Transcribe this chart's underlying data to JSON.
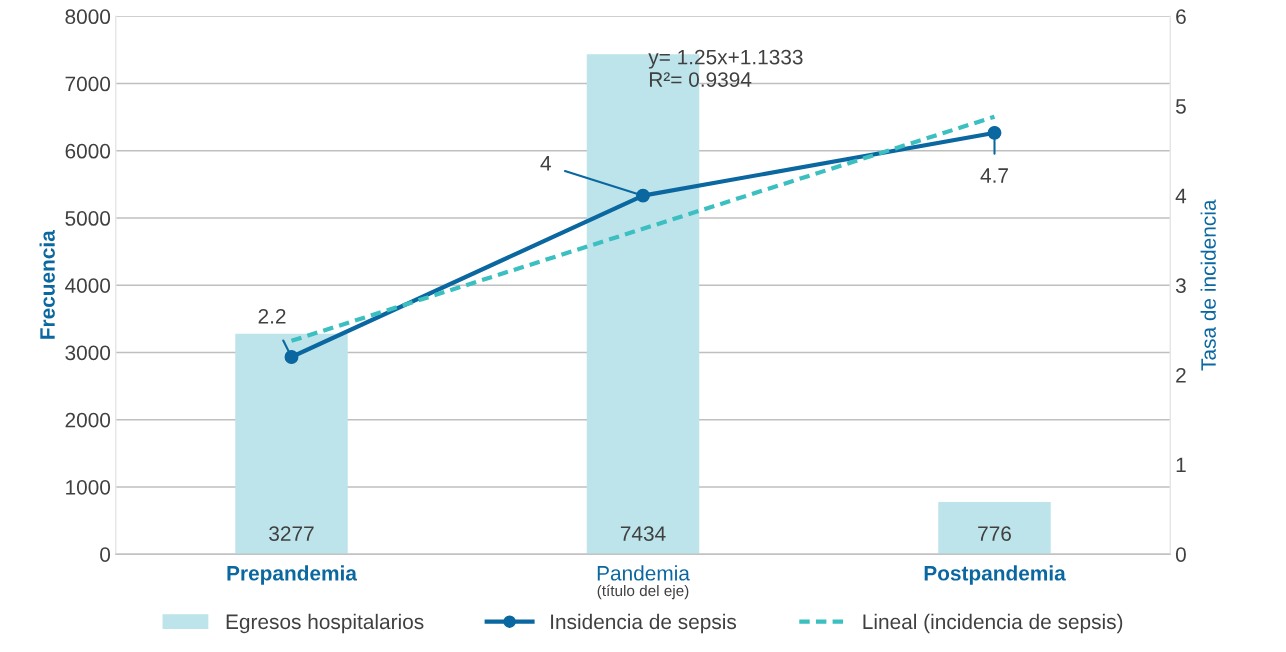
{
  "chart_data": {
    "type": "bar",
    "xlabel": "(título del eje)",
    "ylabel": "Frecuencia",
    "y2label": "Tasa de incidencia",
    "categories": [
      "Prepandemia",
      "Pandemia",
      "Postpandemia"
    ],
    "series": [
      {
        "name": "Egresos hospitalarios",
        "color": "#bde4ea",
        "values": [
          3277,
          7434,
          776
        ],
        "value_labels": [
          "3277",
          "7434",
          "776"
        ]
      },
      {
        "name": "Insidencia de sepsis",
        "type": "line",
        "axis": "y2",
        "color": "#0b67a0",
        "marker": "circle",
        "line_style": "solid",
        "values": [
          2.2,
          4,
          4.7
        ],
        "value_labels": [
          "2.2",
          "4",
          "4.7"
        ]
      },
      {
        "name": "Lineal (incidencia de sepsis)",
        "type": "line",
        "axis": "y2",
        "color": "#3bbfc0",
        "marker": "none",
        "line_style": "dashed",
        "values": [
          2.38,
          3.63,
          4.88
        ]
      }
    ],
    "ylim": [
      0,
      8000
    ],
    "yticks": [
      0,
      1000,
      2000,
      3000,
      4000,
      5000,
      6000,
      7000,
      8000
    ],
    "y2lim": [
      0,
      6
    ],
    "y2ticks": [
      0,
      1,
      2,
      3,
      4,
      5,
      6
    ],
    "annotations": [
      "y= 1.25x+1.1333\nR²= 0.9394"
    ],
    "grid": "y",
    "legend": "bottom"
  }
}
